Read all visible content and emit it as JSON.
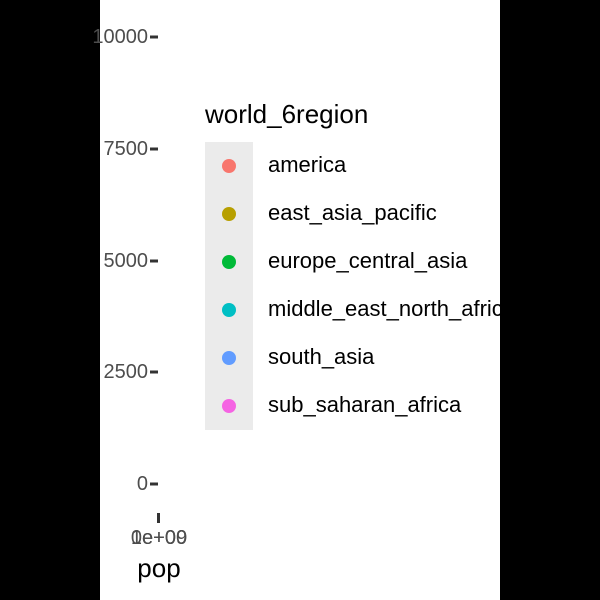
{
  "chart_data": {
    "type": "scatter",
    "xlabel": "pop",
    "ylabel": "",
    "x_ticks": [
      "0e+00",
      "1e+09"
    ],
    "y_ticks": [
      "0",
      "2500",
      "5000",
      "7500",
      "10000"
    ],
    "ylim": [
      0,
      10000
    ],
    "legend": {
      "title": "world_6region",
      "placement": "right"
    },
    "series": [
      {
        "name": "america",
        "color": "#F8766D",
        "points": []
      },
      {
        "name": "east_asia_pacific",
        "color": "#B79F00",
        "points": []
      },
      {
        "name": "europe_central_asia",
        "color": "#00BA38",
        "points": []
      },
      {
        "name": "middle_east_north_africa",
        "color": "#00BFC4",
        "points": []
      },
      {
        "name": "south_asia",
        "color": "#619CFF",
        "points": []
      },
      {
        "name": "sub_saharan_africa",
        "color": "#F564E3",
        "points": []
      }
    ]
  }
}
